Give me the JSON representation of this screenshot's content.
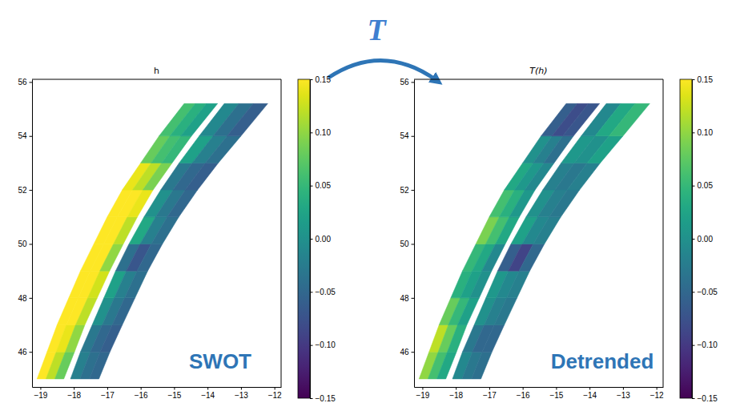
{
  "arrow_label": "T",
  "chart_data": [
    {
      "type": "swath_map",
      "title": "h",
      "annotation": "SWOT",
      "color": "viridis",
      "xlim": [
        -19.25,
        -11.8
      ],
      "xticks": [
        {
          "value": -19,
          "label": "−19"
        },
        {
          "value": -18,
          "label": "−18"
        },
        {
          "value": -17,
          "label": "−17"
        },
        {
          "value": -16,
          "label": "−16"
        },
        {
          "value": -15,
          "label": "−15"
        },
        {
          "value": -14,
          "label": "−14"
        },
        {
          "value": -13,
          "label": "−13"
        },
        {
          "value": -12,
          "label": "−12"
        }
      ],
      "ylim": [
        44.7,
        56.1
      ],
      "yticks": [
        46,
        48,
        50,
        52,
        54,
        56
      ],
      "colorbar": {
        "range": [
          -0.15,
          0.15
        ],
        "ticks": [
          {
            "value": -0.15,
            "label": "−0.15"
          },
          {
            "value": -0.1,
            "label": "−0.10"
          },
          {
            "value": -0.05,
            "label": "−0.05"
          },
          {
            "value": 0,
            "label": "0.00"
          },
          {
            "value": 0.05,
            "label": "0.05"
          },
          {
            "value": 0.1,
            "label": "0.10"
          },
          {
            "value": 0.15,
            "label": "0.15"
          }
        ]
      },
      "swaths": [
        {
          "lat_edges": [
            45,
            46,
            47,
            48,
            49,
            50,
            51,
            52,
            53,
            54,
            55.2
          ],
          "lon_west": [
            -19.1,
            -18.8,
            -18.5,
            -18.15,
            -17.8,
            -17.4,
            -17.0,
            -16.55,
            -16.0,
            -15.45,
            -14.7
          ],
          "lon_east": [
            -18.3,
            -17.98,
            -17.67,
            -17.3,
            -16.93,
            -16.52,
            -16.1,
            -15.63,
            -15.06,
            -14.48,
            -13.7
          ],
          "values": [
            [
              0.15,
              0.12,
              0.08
            ],
            [
              0.16,
              0.14,
              0.1
            ],
            [
              0.17,
              0.15,
              0.12
            ],
            [
              0.17,
              0.16,
              0.13
            ],
            [
              0.16,
              0.15,
              0.1
            ],
            [
              0.16,
              0.15,
              0.12
            ],
            [
              0.17,
              0.16,
              0.14
            ],
            [
              0.14,
              0.12,
              0.09
            ],
            [
              0.08,
              0.06,
              0.05
            ],
            [
              0.06,
              0.04,
              0.02
            ]
          ]
        },
        {
          "lat_edges": [
            45,
            46,
            47,
            48,
            49,
            50,
            51,
            52,
            53,
            54,
            55.2
          ],
          "lon_west": [
            -18.1,
            -17.8,
            -17.45,
            -17.1,
            -16.75,
            -16.35,
            -15.9,
            -15.4,
            -14.85,
            -14.25,
            -13.5
          ],
          "lon_east": [
            -17.25,
            -16.92,
            -16.55,
            -16.17,
            -15.79,
            -15.35,
            -14.86,
            -14.3,
            -13.68,
            -13.0,
            -12.2
          ],
          "values": [
            [
              -0.02,
              -0.04,
              -0.05
            ],
            [
              -0.03,
              -0.05,
              -0.06
            ],
            [
              0.0,
              -0.03,
              -0.05
            ],
            [
              0.02,
              -0.02,
              -0.04
            ],
            [
              -0.04,
              -0.07,
              -0.05
            ],
            [
              0.03,
              -0.02,
              -0.04
            ],
            [
              0.0,
              -0.03,
              -0.05
            ],
            [
              -0.03,
              -0.05,
              -0.06
            ],
            [
              0.02,
              -0.02,
              -0.04
            ],
            [
              -0.01,
              -0.04,
              -0.06
            ]
          ]
        }
      ]
    },
    {
      "type": "swath_map",
      "title": "T(h)",
      "annotation": "Detrended",
      "color": "viridis",
      "xlim": [
        -19.25,
        -11.8
      ],
      "xticks": [
        {
          "value": -19,
          "label": "−19"
        },
        {
          "value": -18,
          "label": "−18"
        },
        {
          "value": -17,
          "label": "−17"
        },
        {
          "value": -16,
          "label": "−16"
        },
        {
          "value": -15,
          "label": "−15"
        },
        {
          "value": -14,
          "label": "−14"
        },
        {
          "value": -13,
          "label": "−13"
        },
        {
          "value": -12,
          "label": "−12"
        }
      ],
      "ylim": [
        44.7,
        56.1
      ],
      "yticks": [
        46,
        48,
        50,
        52,
        54,
        56
      ],
      "colorbar": {
        "range": [
          -0.15,
          0.15
        ],
        "ticks": [
          {
            "value": -0.15,
            "label": "−0.15"
          },
          {
            "value": -0.1,
            "label": "−0.10"
          },
          {
            "value": -0.05,
            "label": "−0.05"
          },
          {
            "value": 0,
            "label": "0.00"
          },
          {
            "value": 0.05,
            "label": "0.05"
          },
          {
            "value": 0.1,
            "label": "0.10"
          },
          {
            "value": 0.15,
            "label": "0.15"
          }
        ]
      },
      "swaths": [
        {
          "lat_edges": [
            45,
            46,
            47,
            48,
            49,
            50,
            51,
            52,
            53,
            54,
            55.2
          ],
          "lon_west": [
            -19.1,
            -18.8,
            -18.5,
            -18.15,
            -17.8,
            -17.4,
            -17.0,
            -16.55,
            -16.0,
            -15.45,
            -14.7
          ],
          "lon_east": [
            -18.3,
            -17.98,
            -17.67,
            -17.3,
            -16.93,
            -16.52,
            -16.1,
            -15.63,
            -15.06,
            -14.48,
            -13.7
          ],
          "values": [
            [
              0.1,
              0.06,
              0.03
            ],
            [
              0.12,
              0.08,
              0.04
            ],
            [
              0.08,
              0.05,
              0.02
            ],
            [
              0.04,
              0.02,
              0.0
            ],
            [
              0.05,
              0.03,
              -0.01
            ],
            [
              0.09,
              0.06,
              0.03
            ],
            [
              0.06,
              0.04,
              0.01
            ],
            [
              0.03,
              0.01,
              -0.01
            ],
            [
              0.0,
              -0.02,
              -0.04
            ],
            [
              -0.06,
              -0.08,
              -0.07
            ]
          ]
        },
        {
          "lat_edges": [
            45,
            46,
            47,
            48,
            49,
            50,
            51,
            52,
            53,
            54,
            55.2
          ],
          "lon_west": [
            -18.1,
            -17.8,
            -17.45,
            -17.1,
            -16.75,
            -16.35,
            -15.9,
            -15.4,
            -14.85,
            -14.25,
            -13.5
          ],
          "lon_east": [
            -17.25,
            -16.92,
            -16.55,
            -16.17,
            -15.79,
            -15.35,
            -14.86,
            -14.3,
            -13.68,
            -13.0,
            -12.2
          ],
          "values": [
            [
              -0.01,
              -0.03,
              -0.04
            ],
            [
              -0.03,
              -0.05,
              -0.05
            ],
            [
              0.0,
              -0.02,
              -0.03
            ],
            [
              0.01,
              -0.01,
              -0.02
            ],
            [
              -0.06,
              -0.09,
              -0.05
            ],
            [
              0.02,
              -0.01,
              -0.02
            ],
            [
              0.0,
              -0.02,
              -0.03
            ],
            [
              -0.02,
              -0.03,
              -0.02
            ],
            [
              0.01,
              0.0,
              0.02
            ],
            [
              -0.01,
              0.03,
              0.05
            ]
          ]
        }
      ]
    }
  ]
}
